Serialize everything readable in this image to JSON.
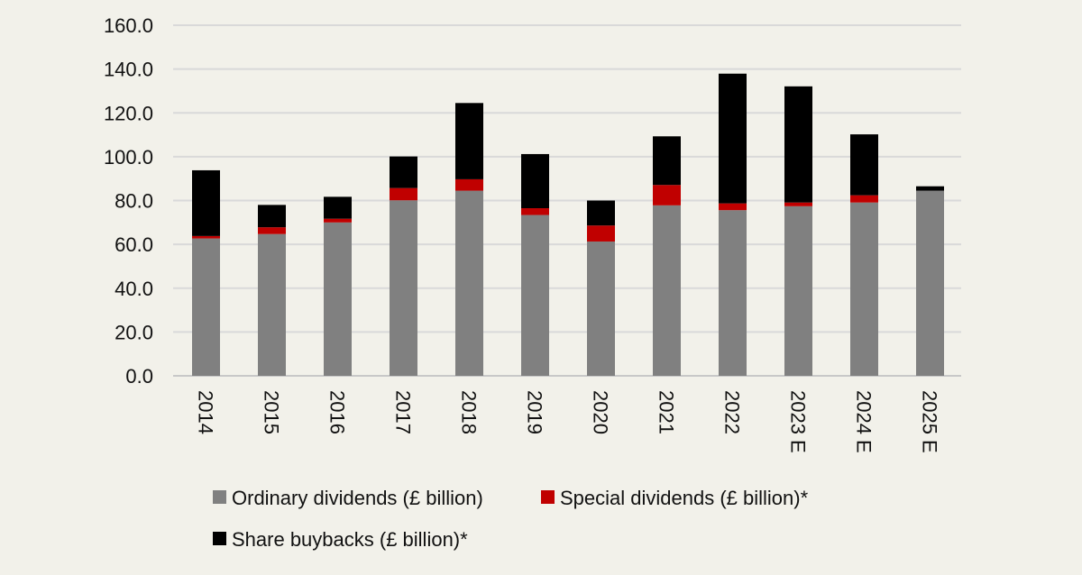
{
  "chart_data": {
    "type": "bar",
    "stacked": true,
    "title": "",
    "xlabel": "",
    "ylabel": "",
    "ylim": [
      0,
      160
    ],
    "yticks": [
      "0.0",
      "20.0",
      "40.0",
      "60.0",
      "80.0",
      "100.0",
      "120.0",
      "140.0",
      "160.0"
    ],
    "ytick_values": [
      0,
      20,
      40,
      60,
      80,
      100,
      120,
      140,
      160
    ],
    "grid": true,
    "legend_position": "bottom",
    "categories": [
      "2014",
      "2015",
      "2016",
      "2017",
      "2018",
      "2019",
      "2020",
      "2021",
      "2022",
      "2023 E",
      "2024 E",
      "2025 E"
    ],
    "series": [
      {
        "name": "Ordinary dividends (£ billion)",
        "color": "#808080",
        "values": [
          62.7,
          64.7,
          70.0,
          80.1,
          84.5,
          73.4,
          61.3,
          77.8,
          75.6,
          77.4,
          79.1,
          84.5
        ]
      },
      {
        "name": "Special dividends (£ billion)*",
        "color": "#c00000",
        "values": [
          1.1,
          3.1,
          1.7,
          5.6,
          5.2,
          3.1,
          7.3,
          9.3,
          3.1,
          1.7,
          3.3,
          0.0
        ]
      },
      {
        "name": "Share buybacks (£ billion)*",
        "color": "#000000",
        "values": [
          30.0,
          10.2,
          10.0,
          14.4,
          34.8,
          24.7,
          11.4,
          22.2,
          59.2,
          53.0,
          27.8,
          2.0
        ]
      }
    ]
  }
}
